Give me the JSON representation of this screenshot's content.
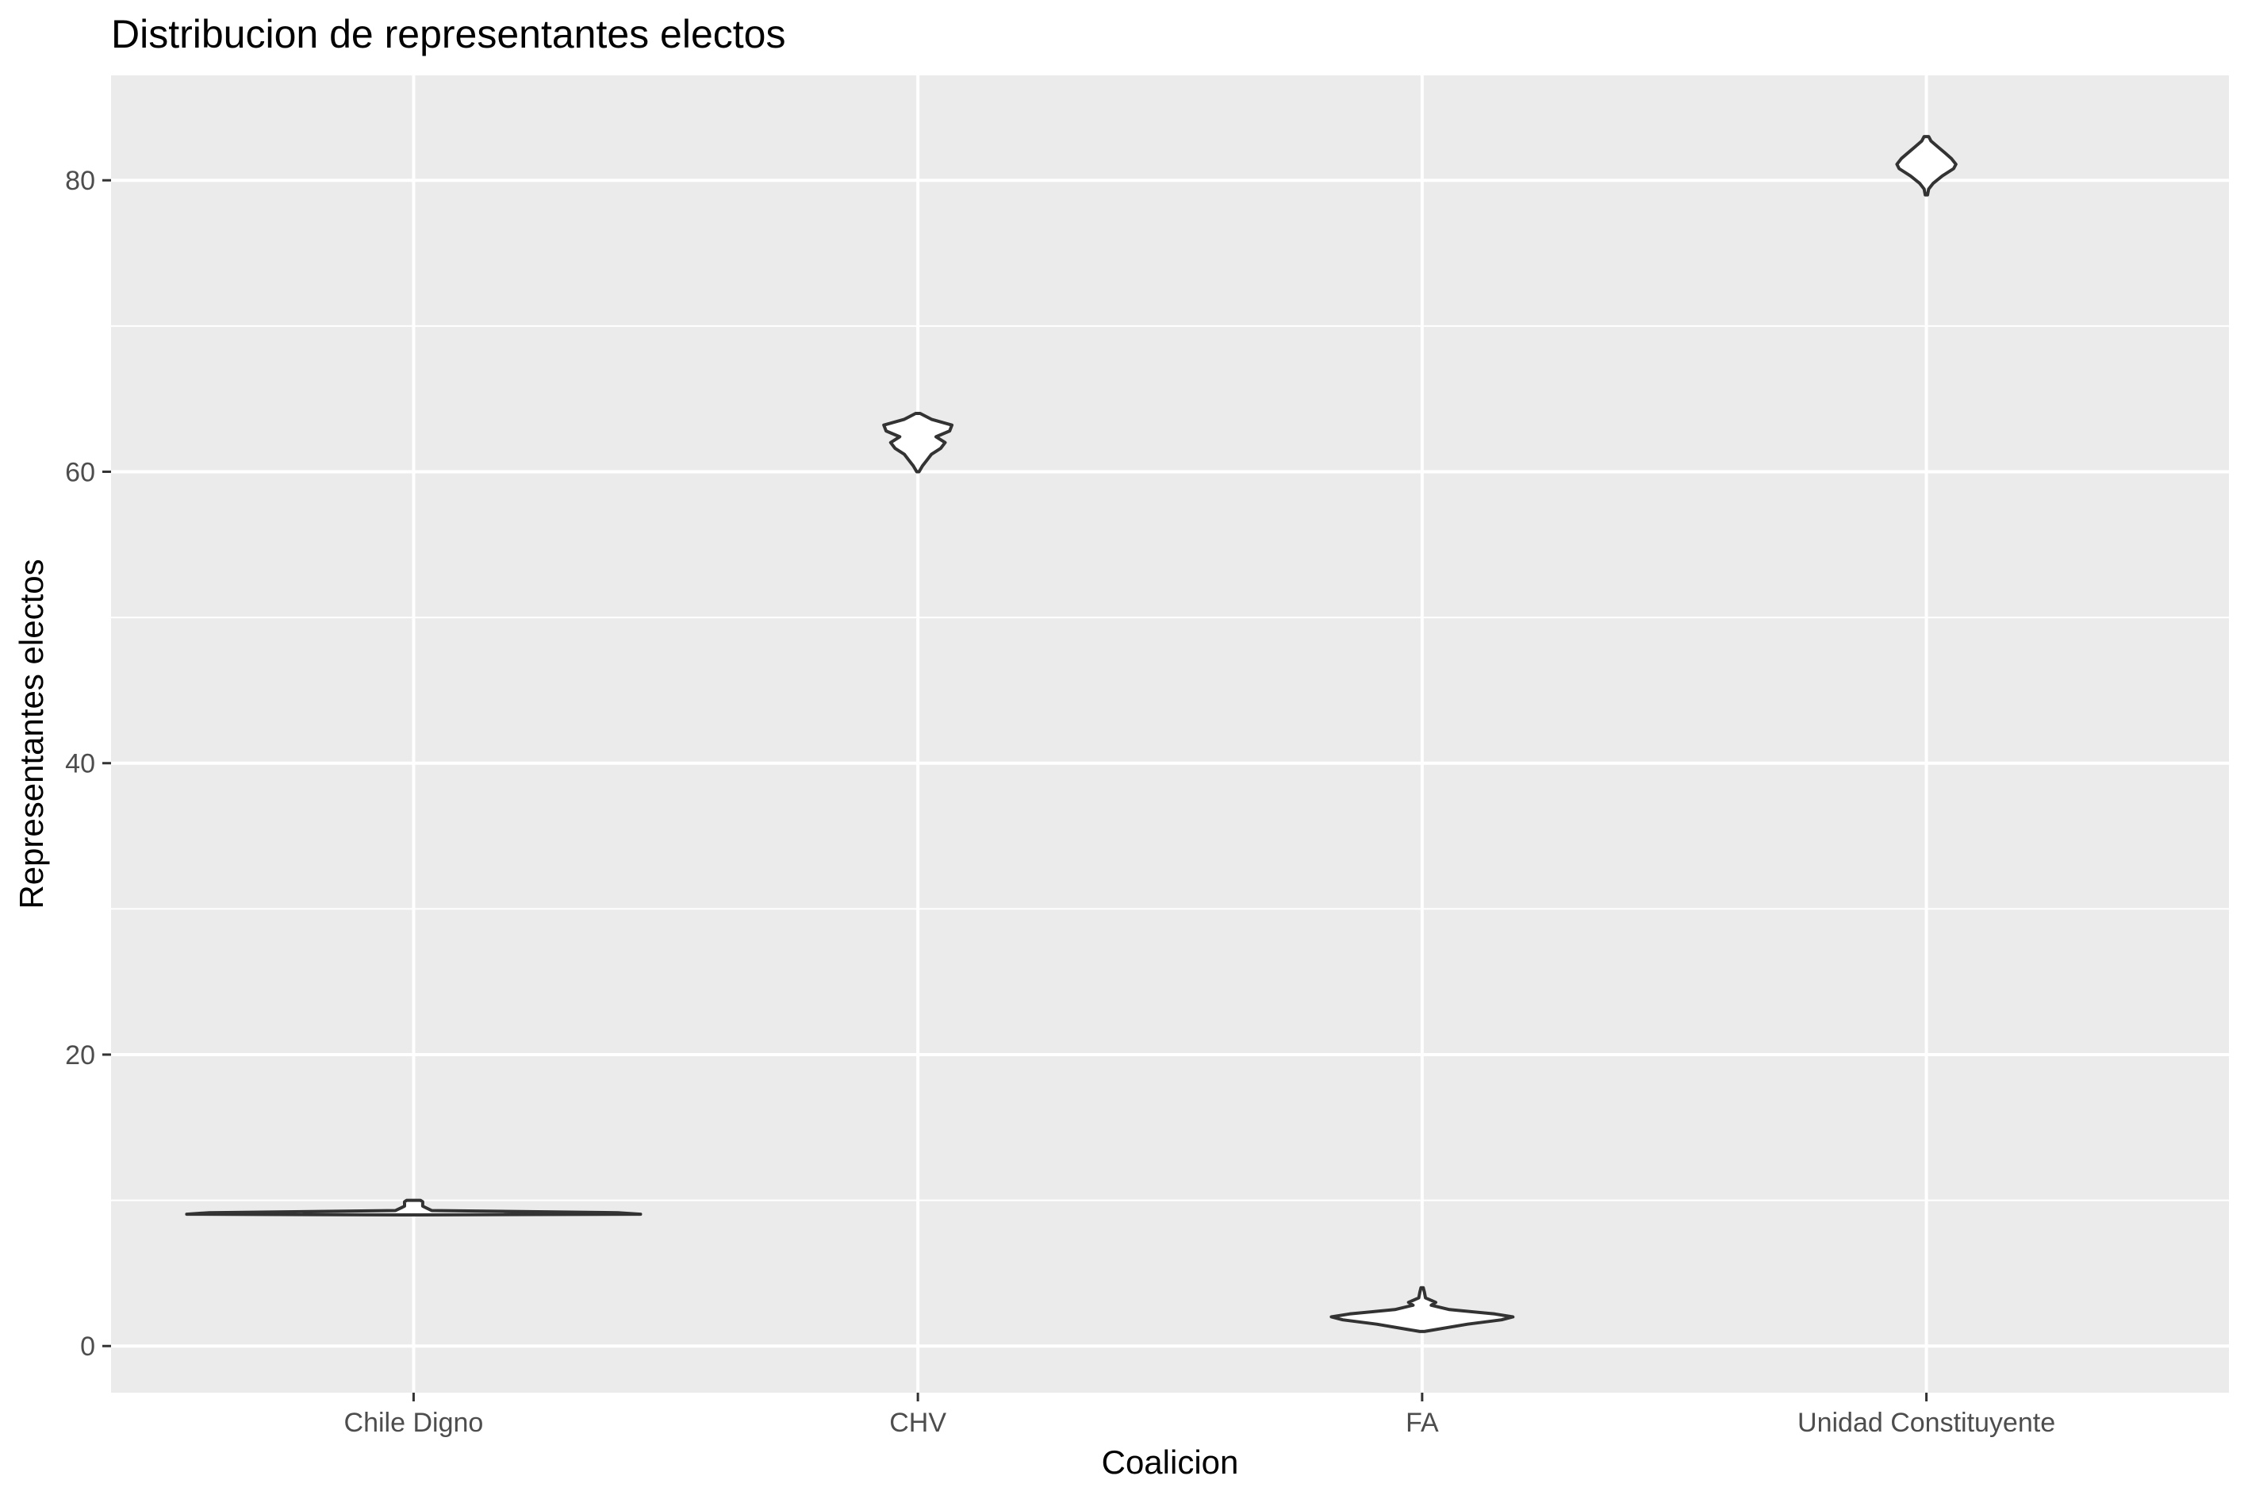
{
  "chart_data": {
    "type": "violin",
    "title": "Distribucion de representantes electos",
    "xlabel": "Coalicion",
    "ylabel": "Representantes electos",
    "categories": [
      "Chile Digno",
      "CHV",
      "FA",
      "Unidad Constituyente"
    ],
    "y_ticks": [
      "0",
      "20",
      "40",
      "60",
      "80"
    ],
    "ylim": [
      -3.2,
      87.2
    ],
    "grid": true,
    "legend": "none",
    "colors": {
      "panel": "#ebebeb",
      "grid": "#ffffff",
      "outline": "#333333",
      "tick_text": "#4d4d4d",
      "text": "#000000"
    },
    "violins": [
      {
        "category": "Chile Digno",
        "density": [
          [
            9,
            0.02
          ],
          [
            9.05,
            1.0
          ],
          [
            9.15,
            0.9
          ],
          [
            9.3,
            0.08
          ],
          [
            9.6,
            0.04
          ],
          [
            9.9,
            0.04
          ],
          [
            10,
            0.03
          ]
        ]
      },
      {
        "category": "CHV",
        "density": [
          [
            60,
            0.005
          ],
          [
            60.4,
            0.02
          ],
          [
            60.8,
            0.04
          ],
          [
            61.2,
            0.06
          ],
          [
            61.6,
            0.1
          ],
          [
            62.0,
            0.12
          ],
          [
            62.4,
            0.08
          ],
          [
            62.8,
            0.14
          ],
          [
            63.2,
            0.15
          ],
          [
            63.6,
            0.06
          ],
          [
            64,
            0.01
          ]
        ]
      },
      {
        "category": "FA",
        "density": [
          [
            1,
            0.01
          ],
          [
            1.5,
            0.2
          ],
          [
            1.8,
            0.35
          ],
          [
            2,
            0.4
          ],
          [
            2.2,
            0.32
          ],
          [
            2.5,
            0.12
          ],
          [
            2.8,
            0.04
          ],
          [
            3.0,
            0.06
          ],
          [
            3.3,
            0.015
          ],
          [
            3.7,
            0.01
          ],
          [
            4,
            0.005
          ]
        ]
      },
      {
        "category": "Unidad Constituyente",
        "density": [
          [
            79,
            0.005
          ],
          [
            79.4,
            0.01
          ],
          [
            79.8,
            0.03
          ],
          [
            80.3,
            0.07
          ],
          [
            80.8,
            0.12
          ],
          [
            81.1,
            0.13
          ],
          [
            81.5,
            0.11
          ],
          [
            81.9,
            0.08
          ],
          [
            82.3,
            0.05
          ],
          [
            82.7,
            0.02
          ],
          [
            83,
            0.01
          ]
        ]
      }
    ]
  }
}
